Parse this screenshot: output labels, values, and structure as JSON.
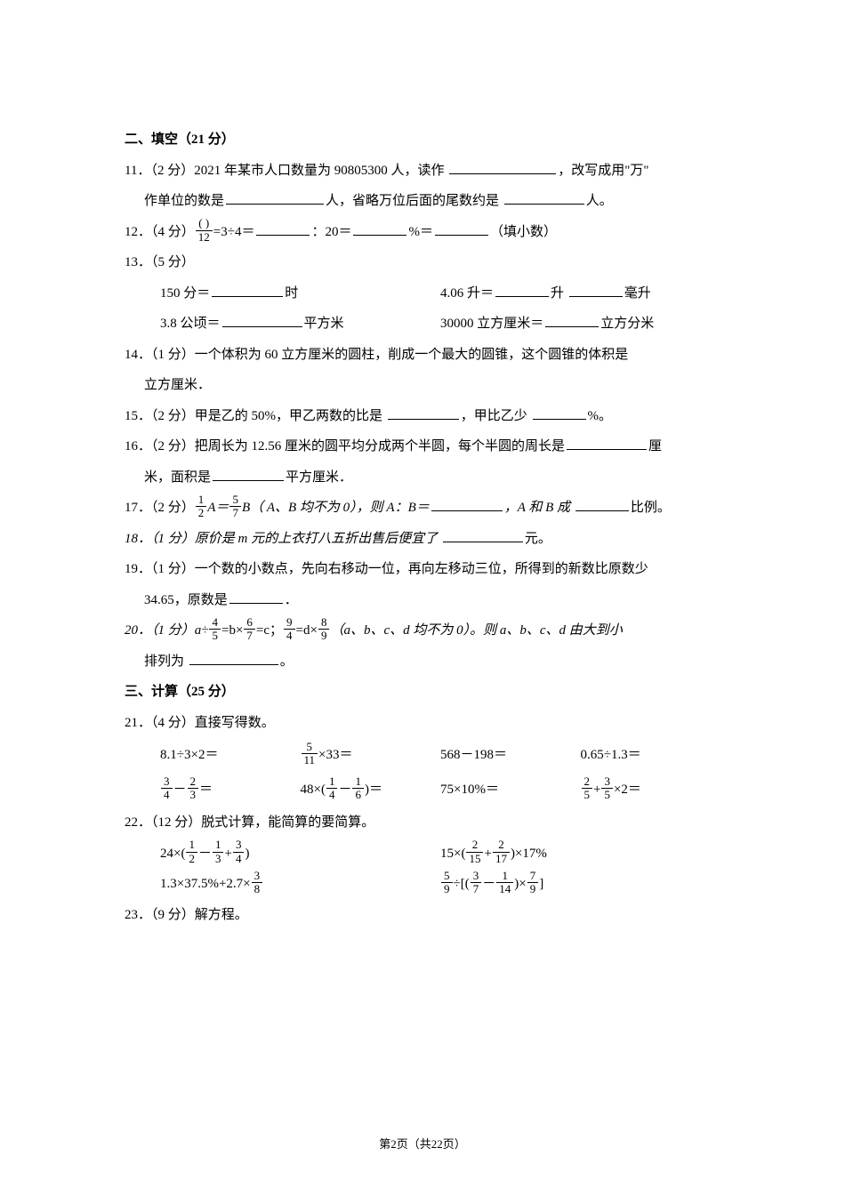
{
  "section2": {
    "heading": "二、填空（21 分）",
    "q11": {
      "l1a": "11．（2 分）2021 年某市人口数量为 90805300 人，读作 ",
      "l1b": "，改写成用\"万\"",
      "l2a": "作单位的数是",
      "l2b": "人，省略万位后面的尾数约是 ",
      "l2c": "人。"
    },
    "q12": {
      "a": "12．（4 分）",
      "frac_num": "( )",
      "frac_den": "12",
      "b": "=3÷4＝",
      "c": "：20＝",
      "d": "%＝",
      "e": "（填小数）"
    },
    "q13": {
      "head": "13．（5 分）",
      "r1a": "150 分＝",
      "r1a2": "时",
      "r1b": "4.06 升＝",
      "r1b2": "升 ",
      "r1b3": "毫升",
      "r2a": "3.8 公顷＝",
      "r2a2": "平方米",
      "r2b": "30000 立方厘米＝",
      "r2b2": "立方分米"
    },
    "q14": {
      "l1": "14．（1 分）一个体积为 60 立方厘米的圆柱，削成一个最大的圆锥，这个圆锥的体积是",
      "l2": "立方厘米．"
    },
    "q15": {
      "a": "15．（2 分）甲是乙的 50%，甲乙两数的比是 ",
      "b": "，甲比乙少 ",
      "c": "%。"
    },
    "q16": {
      "l1a": "16．（2 分）把周长为 12.56 厘米的圆平均分成两个半圆，每个半圆的周长是",
      "l1b": "厘",
      "l2a": "米，面积是",
      "l2b": "平方厘米．"
    },
    "q17": {
      "a": "17．（2 分）",
      "f1n": "1",
      "f1d": "2",
      "mid1": "A＝",
      "f2n": "5",
      "f2d": "7",
      "mid2": "B（ A、B 均不为 0），则 A：B＝",
      "mid3": "，A 和 B 成 ",
      "end": "比例。"
    },
    "q18": {
      "a": "18．（1 分）原价是 m 元的上衣打八五折出售后便宜了 ",
      "b": "元。"
    },
    "q19": {
      "l1": "19．（1 分）一个数的小数点，先向右移动一位，再向左移动三位，所得到的新数比原数少",
      "l2a": "34.65，原数是",
      "l2b": "．"
    },
    "q20": {
      "a": "20．（1 分）a÷",
      "f1n": "4",
      "f1d": "5",
      "b": "=b×",
      "f2n": "6",
      "f2d": "7",
      "c": "=c；",
      "f3n": "9",
      "f3d": "4",
      "d": "=d×",
      "f4n": "8",
      "f4d": "9",
      "e": "（a、b、c、d 均不为 0）。则 a、b、c、d 由大到小",
      "l2a": "排列为 ",
      "l2b": "。"
    }
  },
  "section3": {
    "heading": "三、计算（25 分）",
    "q21": {
      "head": "21．（4 分）直接写得数。",
      "r1c1": "8.1÷3×2＝",
      "r1c2a": "5",
      "r1c2b": "11",
      "r1c2c": "×33＝",
      "r1c3": "568－198＝",
      "r1c4": "0.65÷1.3＝",
      "r2c1a": "3",
      "r2c1b": "4",
      "r2c1c": "2",
      "r2c1d": "3",
      "r2c2a": "48×(",
      "r2c2b": "1",
      "r2c2c": "4",
      "r2c2d": "1",
      "r2c2e": "6",
      "r2c2f": ")＝",
      "r2c3": "75×10%＝",
      "r2c4a": "2",
      "r2c4b": "5",
      "r2c4c": "3",
      "r2c4d": "5",
      "r2c4e": "×2＝"
    },
    "q22": {
      "head": "22．（12 分）脱式计算，能简算的要简算。",
      "r1c1": {
        "a": "24×(",
        "f1n": "1",
        "f1d": "2",
        "m1": "－",
        "f2n": "1",
        "f2d": "3",
        "m2": "+",
        "f3n": "3",
        "f3d": "4",
        "e": ")"
      },
      "r1c2": {
        "a": "15×(",
        "f1n": "2",
        "f1d": "15",
        "m1": "+",
        "f2n": "2",
        "f2d": "17",
        "e": ")×17%"
      },
      "r2c1": {
        "a": "1.3×37.5%+2.7×",
        "f1n": "3",
        "f1d": "8"
      },
      "r2c2": {
        "a": "",
        "f1n": "5",
        "f1d": "9",
        "m1": "÷[(",
        "f2n": "3",
        "f2d": "7",
        "m2": "－",
        "f3n": "1",
        "f3d": "14",
        "m3": ")×",
        "f4n": "7",
        "f4d": "9",
        "e": "]"
      }
    },
    "q23": {
      "head": "23．（9 分）解方程。"
    }
  },
  "footer": "第2页（共22页）"
}
